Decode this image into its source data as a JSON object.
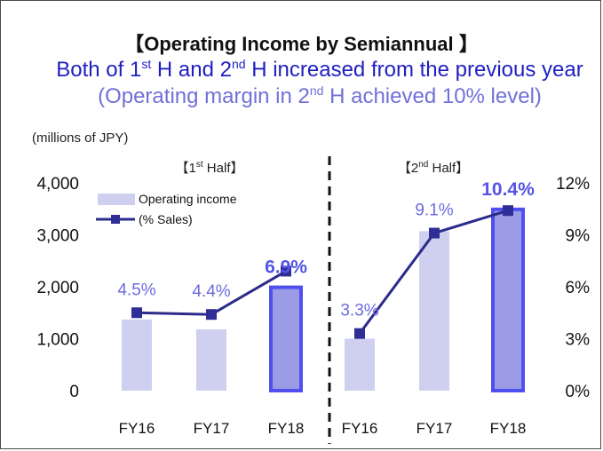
{
  "title": "【Operating Income by Semiannual 】",
  "subtitle_main_1": "Both of 1",
  "subtitle_sup_1": "st",
  "subtitle_main_2": " H and 2",
  "subtitle_sup_2": "nd",
  "subtitle_main_3": " H increased from the previous year",
  "subtitle_light_1": " (Operating margin in 2",
  "subtitle_sup_3": "nd",
  "subtitle_light_2": " H achieved 10% level)",
  "chart_data": {
    "type": "bar",
    "unit_label": "(millions of JPY)",
    "groups": [
      {
        "label_open": "【1",
        "label_sup": "st",
        "label_close": " Half】"
      },
      {
        "label_open": "【2",
        "label_sup": "nd",
        "label_close": " Half】"
      }
    ],
    "categories": [
      "FY16",
      "FY17",
      "FY18",
      "FY16",
      "FY17",
      "FY18"
    ],
    "group_index": [
      0,
      0,
      0,
      1,
      1,
      1
    ],
    "series": [
      {
        "name": "Operating income",
        "type": "bar",
        "axis": "left",
        "values": [
          1370,
          1180,
          1990,
          1000,
          3070,
          3490
        ]
      },
      {
        "name": "(% Sales)",
        "type": "line",
        "axis": "right",
        "values": [
          4.5,
          4.4,
          6.9,
          3.3,
          9.1,
          10.4
        ],
        "data_labels": [
          "4.5%",
          "4.4%",
          "6.9%",
          "3.3%",
          "9.1%",
          "10.4%"
        ]
      }
    ],
    "highlighted": [
      2,
      5
    ],
    "y_left": {
      "min": 0,
      "max": 4000,
      "ticks": [
        0,
        1000,
        2000,
        3000,
        4000
      ],
      "tick_labels": [
        "0",
        "1,000",
        "2,000",
        "3,000",
        "4,000"
      ]
    },
    "y_right": {
      "min": 0,
      "max": 12,
      "ticks": [
        0,
        3,
        6,
        9,
        12
      ],
      "tick_labels": [
        "0%",
        "3%",
        "6%",
        "9%",
        "12%"
      ]
    },
    "colors": {
      "bar": "#cfcff0",
      "bar_highlight": "#9b9be6",
      "bar_highlight_border": "#5050f0",
      "line": "#2b2b8c",
      "marker": "#2e2e96"
    },
    "legend_position": "top-left",
    "grid": false
  }
}
